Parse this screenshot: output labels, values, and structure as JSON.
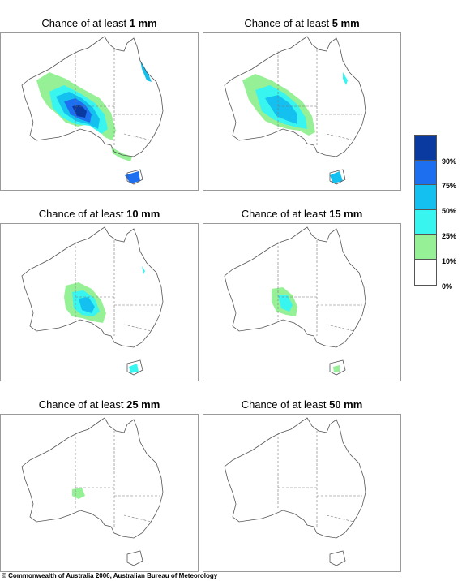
{
  "panels": [
    {
      "prefix": "Chance of at least ",
      "amount": "1 mm"
    },
    {
      "prefix": "Chance of at least ",
      "amount": "5 mm"
    },
    {
      "prefix": "Chance of at least ",
      "amount": "10 mm"
    },
    {
      "prefix": "Chance of at least ",
      "amount": "15 mm"
    },
    {
      "prefix": "Chance of at least ",
      "amount": "25 mm"
    },
    {
      "prefix": "Chance of at least ",
      "amount": "50 mm"
    }
  ],
  "legend": {
    "labels": [
      "90%",
      "75%",
      "50%",
      "25%",
      "10%",
      "0%"
    ],
    "colors": [
      "#0a3aa0",
      "#1e6ff0",
      "#14c0f0",
      "#38f5f0",
      "#96f096",
      "#ffffff"
    ]
  },
  "copyright": "© Commonwealth of Australia 2006, Australian Bureau of Meteorology"
}
